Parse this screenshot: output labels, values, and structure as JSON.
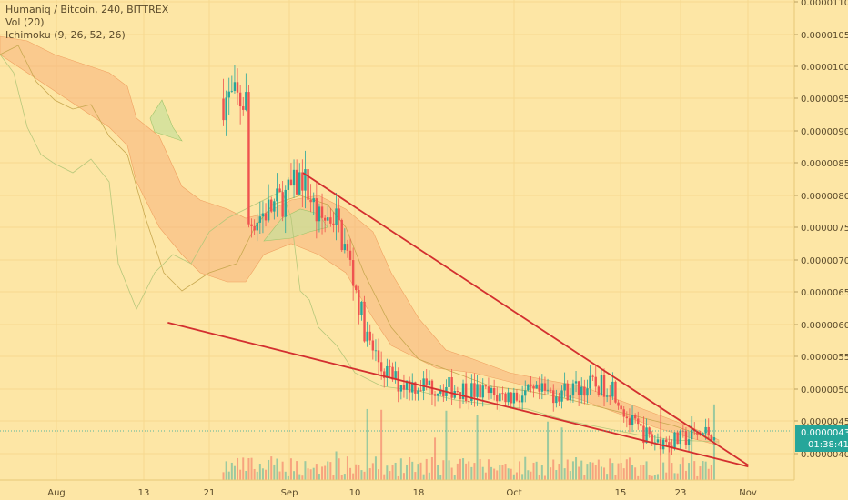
{
  "header": {
    "symbol_line": "Humaniq / Bitcoin, 240, BITTREX",
    "vol_line": "Vol (20)",
    "ichimoku_line": "Ichimoku (9, 26, 52, 26)"
  },
  "price_badge": {
    "value": "0.00000435",
    "countdown": "01:38:41",
    "color": "#26a69a"
  },
  "colors": {
    "background": "#fde6a5",
    "up": "#26a69a",
    "down": "#ef5350",
    "trendline": "#d32f2f",
    "cloud_bear": "#f7b27c",
    "cloud_bull": "#c8e09a",
    "axis_text": "#5a4a2a"
  },
  "chart_data": {
    "type": "candlestick",
    "title": "Humaniq / Bitcoin, 240, BITTREX",
    "x_ticks": [
      "Aug",
      "13",
      "21",
      "Sep",
      "10",
      "18",
      "Oct",
      "15",
      "23",
      "Nov"
    ],
    "y_ticks": [
      "0.00001100",
      "0.00001050",
      "0.00001000",
      "0.00000950",
      "0.00000900",
      "0.00000850",
      "0.00000800",
      "0.00000750",
      "0.00000700",
      "0.00000650",
      "0.00000600",
      "0.00000550",
      "0.00000500",
      "0.00000450",
      "0.00000400"
    ],
    "ylim": [
      3.7e-06,
      1.11e-05
    ],
    "last_price": 4.35e-06,
    "close_path": [
      [
        "Jul 27",
        9.5e-06
      ],
      [
        "Jul 30",
        9.45e-06
      ],
      [
        "Aug 2",
        9.2e-06
      ],
      [
        "Aug 5",
        8.8e-06
      ],
      [
        "Aug 7",
        9.3e-06
      ],
      [
        "Aug 9",
        9.75e-06
      ],
      [
        "Aug 10",
        9.6e-06
      ],
      [
        "Aug 11",
        8.85e-06
      ],
      [
        "Aug 12",
        8.3e-06
      ],
      [
        "Aug 13",
        7.3e-06
      ],
      [
        "Aug 14",
        6.6e-06
      ],
      [
        "Aug 16",
        6.6e-06
      ],
      [
        "Aug 18",
        6.8e-06
      ],
      [
        "Aug 20",
        6.6e-06
      ],
      [
        "Aug 22",
        7e-06
      ],
      [
        "Aug 24",
        7.4e-06
      ],
      [
        "Aug 26",
        7.65e-06
      ],
      [
        "Aug 28",
        7.8e-06
      ],
      [
        "Aug 30",
        8e-06
      ],
      [
        "Sep 1",
        8.3e-06
      ],
      [
        "Sep 3",
        7.6e-06
      ],
      [
        "Sep 5",
        7.7e-06
      ],
      [
        "Sep 7",
        6.9e-06
      ],
      [
        "Sep 9",
        5.8e-06
      ],
      [
        "Sep 11",
        5.3e-06
      ],
      [
        "Sep 13",
        5.1e-06
      ],
      [
        "Sep 17",
        5.05e-06
      ],
      [
        "Sep 21",
        5e-06
      ],
      [
        "Sep 25",
        4.9e-06
      ],
      [
        "Sep 29",
        4.9e-06
      ],
      [
        "Oct 3",
        4.95e-06
      ],
      [
        "Oct 7",
        5.05e-06
      ],
      [
        "Oct 10",
        5.05e-06
      ],
      [
        "Oct 12",
        4.5e-06
      ],
      [
        "Oct 15",
        4.2e-06
      ],
      [
        "Oct 18",
        4.2e-06
      ],
      [
        "Oct 21",
        4.3e-06
      ],
      [
        "Oct 23",
        4.35e-06
      ]
    ],
    "trendlines": [
      {
        "from": [
          "Sep 1",
          8.35e-06
        ],
        "to": [
          "Oct 27",
          3.82e-06
        ]
      },
      {
        "from": [
          "Aug 15",
          6.03e-06
        ],
        "to": [
          "Oct 27",
          3.8e-06
        ]
      }
    ]
  }
}
